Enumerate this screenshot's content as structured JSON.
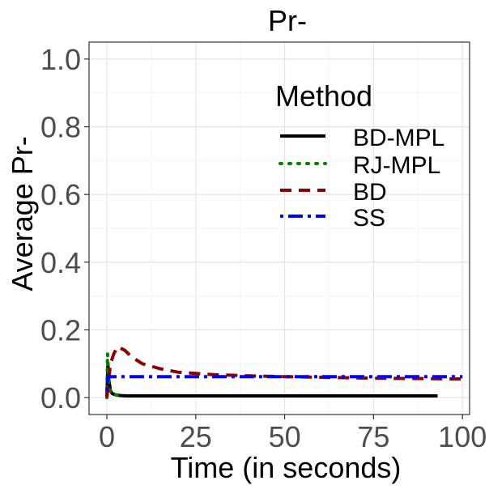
{
  "chart_data": {
    "type": "line",
    "title": "Pr-",
    "xlabel": "Time (in seconds)",
    "ylabel": "Average Pr-",
    "xlim": [
      -5,
      102
    ],
    "ylim": [
      -0.05,
      1.05
    ],
    "grid": true,
    "x_ticks": [
      0,
      25,
      50,
      75,
      100
    ],
    "x_tick_labels": [
      "0",
      "25",
      "50",
      "75",
      "100"
    ],
    "y_ticks": [
      0.0,
      0.2,
      0.4,
      0.6,
      0.8,
      1.0
    ],
    "y_tick_labels": [
      "0.0",
      "0.2",
      "0.4",
      "0.6",
      "0.8",
      "1.0"
    ],
    "legend": {
      "title": "Method",
      "placement": "top-right",
      "entries": [
        "BD-MPL",
        "RJ-MPL",
        "BD",
        "SS"
      ]
    },
    "series": [
      {
        "name": "BD-MPL",
        "color": "#000000",
        "style": "solid",
        "x": [
          0,
          0.3,
          0.6,
          1.0,
          1.5,
          2.5,
          4,
          6,
          10,
          20,
          40,
          60,
          80,
          93
        ],
        "y": [
          0.0,
          0.1,
          0.05,
          0.02,
          0.012,
          0.008,
          0.006,
          0.005,
          0.005,
          0.005,
          0.005,
          0.005,
          0.005,
          0.005
        ]
      },
      {
        "name": "RJ-MPL",
        "color": "#008000",
        "style": "dotted",
        "x": [
          0,
          0.2,
          0.4,
          0.7,
          1.0,
          1.5,
          2.5,
          4
        ],
        "y": [
          0.0,
          0.13,
          0.08,
          0.03,
          0.015,
          0.01,
          0.008,
          0.007
        ]
      },
      {
        "name": "BD",
        "color": "#8b0000",
        "style": "dashed",
        "x": [
          0,
          0.5,
          1,
          2,
          3,
          5,
          7,
          10,
          15,
          20,
          30,
          40,
          50,
          60,
          70,
          80,
          90,
          100
        ],
        "y": [
          0.0,
          0.05,
          0.1,
          0.13,
          0.15,
          0.14,
          0.12,
          0.1,
          0.085,
          0.075,
          0.068,
          0.064,
          0.062,
          0.06,
          0.058,
          0.057,
          0.056,
          0.055
        ]
      },
      {
        "name": "SS",
        "color": "#0000ff",
        "style": "dotdash",
        "x": [
          0,
          0.3,
          0.6,
          1,
          2,
          5,
          10,
          20,
          40,
          60,
          80,
          100
        ],
        "y": [
          0.02,
          0.06,
          0.063,
          0.062,
          0.062,
          0.062,
          0.062,
          0.062,
          0.062,
          0.062,
          0.062,
          0.062
        ]
      }
    ]
  }
}
